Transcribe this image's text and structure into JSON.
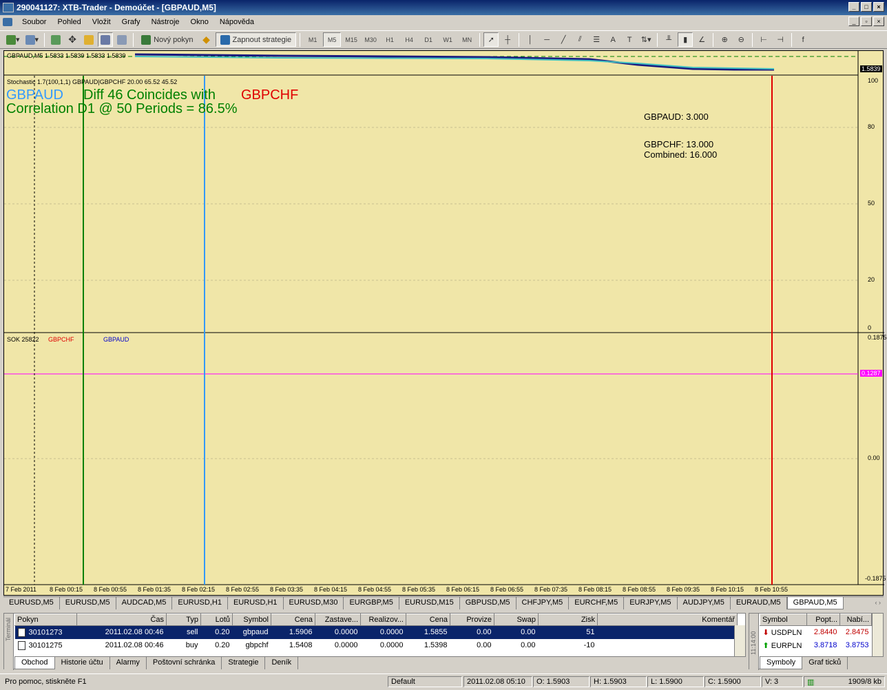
{
  "window": {
    "title": "290041127: XTB-Trader - Demoúčet - [GBPAUD,M5]"
  },
  "menu": [
    "Soubor",
    "Pohled",
    "Vložit",
    "Grafy",
    "Nástroje",
    "Okno",
    "Nápověda"
  ],
  "toolbar": {
    "new_order": "Nový pokyn",
    "start_strategy": "Zapnout strategie",
    "timeframes": [
      "M1",
      "M5",
      "M15",
      "M30",
      "H1",
      "H4",
      "D1",
      "W1",
      "MN"
    ],
    "active_timeframe": "M5"
  },
  "chart": {
    "price_label": "GBPAUD,M5  1.5833 1.5839 1.5833 1.5839",
    "price_badge": "1.5839",
    "stoch_label": "Stochastic 1.7(100,1,1) GBPAUD|GBPCHF 20.00 65.52 45.52",
    "overlay_sym1": "GBPAUD",
    "overlay_diff": "Diff 46 Coincides with",
    "overlay_sym2": "GBPCHF",
    "overlay_corr": "Correlation D1 @ 50 Periods = 86.5%",
    "info_gbpaud": "GBPAUD: 3.000",
    "info_gbpchf": "GBPCHF: 13.000",
    "info_combined": "Combined: 16.000",
    "stoch_ticks": [
      "100",
      "80",
      "50",
      "20",
      "0"
    ],
    "sok_label": "SOK 25822",
    "sok_sym1": "GBPCHF",
    "sok_sym2": "GBPAUD",
    "sok_ticks": [
      "0.1875",
      "0.00",
      "-0.1875"
    ],
    "sok_level_badge": "0.1287",
    "sok_top_extra": "-0.1875",
    "x_ticks": [
      "7 Feb 2011",
      "8 Feb 00:15",
      "8 Feb 00:55",
      "8 Feb 01:35",
      "8 Feb 02:15",
      "8 Feb 02:55",
      "8 Feb 03:35",
      "8 Feb 04:15",
      "8 Feb 04:55",
      "8 Feb 05:35",
      "8 Feb 06:15",
      "8 Feb 06:55",
      "8 Feb 07:35",
      "8 Feb 08:15",
      "8 Feb 08:55",
      "8 Feb 09:35",
      "8 Feb 10:15",
      "8 Feb 10:55"
    ]
  },
  "chart_tabs": [
    "EURUSD,M5",
    "EURUSD,M5",
    "AUDCAD,M5",
    "EURUSD,H1",
    "EURUSD,H1",
    "EURUSD,M30",
    "EURGBP,M5",
    "EURUSD,M15",
    "GBPUSD,M5",
    "CHFJPY,M5",
    "EURCHF,M5",
    "EURJPY,M5",
    "AUDJPY,M5",
    "EURAUD,M5",
    "GBPAUD,M5"
  ],
  "active_chart_tab": "GBPAUD,M5",
  "terminal": {
    "side_label": "Terminál",
    "columns": [
      "Pokyn",
      "Čas",
      "Typ",
      "Lotů",
      "Symbol",
      "Cena",
      "Zastave...",
      "Realizov...",
      "Cena",
      "Provize",
      "Swap",
      "Zisk",
      "Komentář"
    ],
    "rows": [
      {
        "order": "30101273",
        "time": "2011.02.08 00:46",
        "type": "sell",
        "lots": "0.20",
        "symbol": "gbpaud",
        "price": "1.5906",
        "sl": "0.0000",
        "tp": "0.0000",
        "cur": "1.5855",
        "comm": "0.00",
        "swap": "0.00",
        "profit": "51",
        "comment": ""
      },
      {
        "order": "30101275",
        "time": "2011.02.08 00:46",
        "type": "buy",
        "lots": "0.20",
        "symbol": "gbpchf",
        "price": "1.5408",
        "sl": "0.0000",
        "tp": "0.0000",
        "cur": "1.5398",
        "comm": "0.00",
        "swap": "0.00",
        "profit": "-10",
        "comment": ""
      }
    ],
    "tabs": [
      "Obchod",
      "Historie účtu",
      "Alarmy",
      "Poštovní schránka",
      "Strategie",
      "Deník"
    ]
  },
  "market_watch": {
    "side_label": "11:14:00",
    "columns": [
      "Symbol",
      "Popt...",
      "Nabí..."
    ],
    "rows": [
      {
        "symbol": "USDPLN",
        "bid": "2.8440",
        "ask": "2.8475",
        "dir": "down"
      },
      {
        "symbol": "EURPLN",
        "bid": "3.8718",
        "ask": "3.8753",
        "dir": "up"
      }
    ],
    "tabs": [
      "Symboly",
      "Graf ticků"
    ]
  },
  "status": {
    "help": "Pro pomoc, stiskněte F1",
    "profile": "Default",
    "datetime": "2011.02.08 05:10",
    "open": "O: 1.5903",
    "high": "H: 1.5903",
    "low": "L: 1.5900",
    "close": "C: 1.5900",
    "volume": "V: 3",
    "traffic": "1909/8 kb"
  },
  "colors": {
    "bg": "#f0e6a8",
    "gbpaud": "#3399ff",
    "gbpchf": "#e00000",
    "diff": "#008000",
    "sok_blue": "#0000cc",
    "level": "#ff00ff"
  }
}
